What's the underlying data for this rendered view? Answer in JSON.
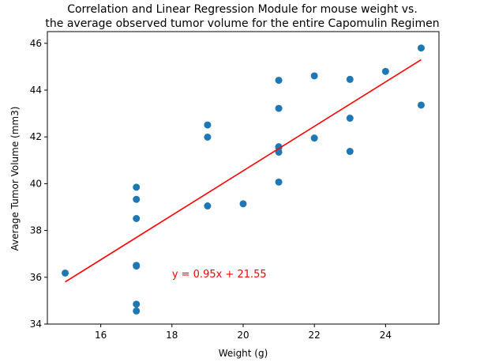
{
  "chart_data": {
    "type": "scatter",
    "title": "Correlation and Linear Regression Module for mouse weight vs.\nthe average observed tumor volume for the entire Capomulin Regimen",
    "title_lines": [
      "Correlation and Linear Regression Module for mouse weight vs.",
      "the average observed tumor volume for the entire Capomulin Regimen"
    ],
    "xlabel": "Weight (g)",
    "ylabel": "Average Tumor Volume (mm3)",
    "xlim": [
      14.5,
      25.5
    ],
    "ylim": [
      34.0,
      46.5
    ],
    "xticks": [
      16,
      18,
      20,
      22,
      24
    ],
    "yticks": [
      34,
      36,
      38,
      40,
      42,
      44,
      46
    ],
    "grid": false,
    "point_color": "#1f77b4",
    "line_color": "#ff0000",
    "series": [
      {
        "x": [
          15,
          17,
          17,
          17,
          17,
          17,
          17,
          17,
          19,
          19,
          19,
          20,
          21,
          21,
          21,
          21,
          21,
          21,
          22,
          22,
          23,
          23,
          23,
          24,
          25,
          25
        ],
        "y": [
          36.18,
          34.56,
          34.85,
          36.51,
          38.51,
          39.33,
          39.85,
          36.48,
          39.05,
          41.99,
          42.51,
          39.14,
          40.07,
          41.35,
          41.58,
          43.22,
          44.42,
          41.55,
          41.95,
          44.61,
          41.38,
          42.8,
          44.46,
          44.8,
          43.36,
          45.8
        ]
      }
    ],
    "regression": {
      "slope": 0.95,
      "intercept": 21.55,
      "x_range": [
        15,
        25
      ],
      "label": "y = 0.95x + 21.55",
      "label_x": 18.0,
      "label_y": 36.0
    }
  }
}
